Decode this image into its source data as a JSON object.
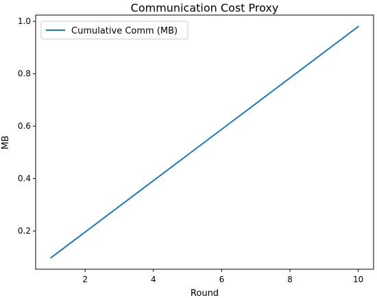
{
  "chart_data": {
    "type": "line",
    "title": "Communication Cost Proxy",
    "xlabel": "Round",
    "ylabel": "MB",
    "x": [
      1,
      2,
      3,
      4,
      5,
      6,
      7,
      8,
      9,
      10
    ],
    "series": [
      {
        "name": "Cumulative Comm (MB)",
        "color": "#1f77b4",
        "values": [
          0.098,
          0.196,
          0.294,
          0.392,
          0.49,
          0.588,
          0.686,
          0.784,
          0.882,
          0.98
        ]
      }
    ],
    "xlim": [
      0.55,
      10.45
    ],
    "ylim": [
      0.054,
      1.024
    ],
    "xticks": [
      2,
      4,
      6,
      8,
      10
    ],
    "xtick_labels": [
      "2",
      "4",
      "6",
      "8",
      "10"
    ],
    "yticks": [
      0.2,
      0.4,
      0.6,
      0.8,
      1.0
    ],
    "ytick_labels": [
      "0.2",
      "0.4",
      "0.6",
      "0.8",
      "1.0"
    ],
    "grid": false,
    "legend_position": "upper-left"
  }
}
